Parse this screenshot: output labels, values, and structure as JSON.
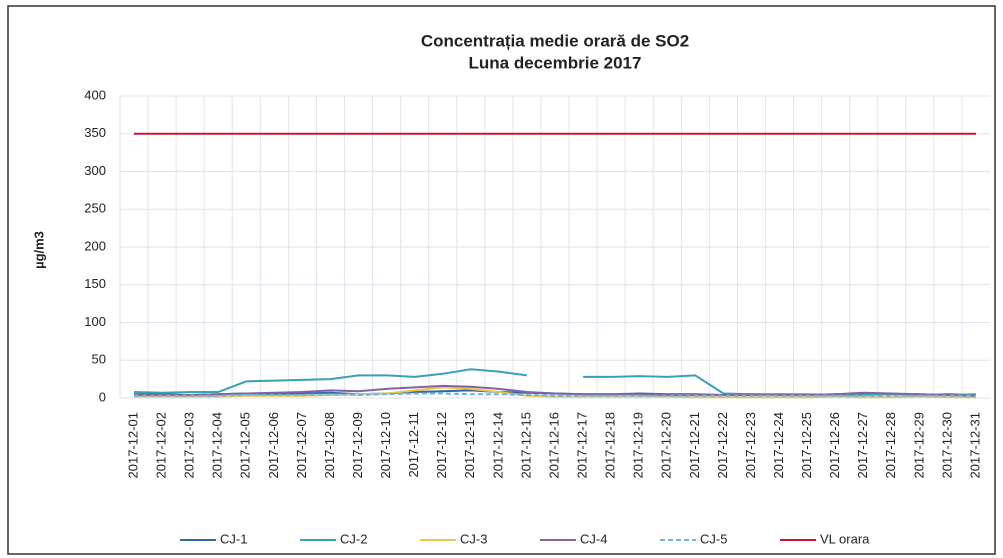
{
  "chart_data": {
    "type": "line",
    "title": "Concentrația medie orară de SO2",
    "subtitle": "Luna decembrie 2017",
    "y_label": "µg/m3",
    "categories": [
      "2017-12-01",
      "2017-12-02",
      "2017-12-03",
      "2017-12-04",
      "2017-12-05",
      "2017-12-06",
      "2017-12-07",
      "2017-12-08",
      "2017-12-09",
      "2017-12-10",
      "2017-12-11",
      "2017-12-12",
      "2017-12-13",
      "2017-12-14",
      "2017-12-15",
      "2017-12-16",
      "2017-12-17",
      "2017-12-18",
      "2017-12-19",
      "2017-12-20",
      "2017-12-21",
      "2017-12-22",
      "2017-12-23",
      "2017-12-24",
      "2017-12-25",
      "2017-12-26",
      "2017-12-27",
      "2017-12-28",
      "2017-12-29",
      "2017-12-30",
      "2017-12-31"
    ],
    "series": [
      {
        "name": "CJ-1",
        "color": "#2e6aa8",
        "values": [
          5,
          5,
          4,
          5,
          6,
          5,
          6,
          7,
          5,
          6,
          8,
          9,
          10,
          8,
          7,
          6,
          5,
          5,
          6,
          5,
          5,
          4,
          4,
          5,
          4,
          5,
          6,
          5,
          4,
          5,
          4
        ]
      },
      {
        "name": "CJ-2",
        "color": "#3aa0b8",
        "values": [
          8,
          7,
          8,
          8,
          22,
          23,
          24,
          25,
          30,
          30,
          28,
          32,
          38,
          35,
          30,
          null,
          28,
          28,
          29,
          28,
          30,
          6,
          5,
          5,
          5,
          4,
          4,
          5,
          5,
          4,
          5
        ]
      },
      {
        "name": "CJ-3",
        "color": "#f0c24a",
        "values": [
          2,
          2,
          2,
          2,
          3,
          3,
          3,
          4,
          5,
          6,
          10,
          14,
          12,
          8,
          3,
          2,
          2,
          2,
          2,
          2,
          1,
          1,
          1,
          1,
          1,
          2,
          1,
          1,
          2,
          1,
          1
        ]
      },
      {
        "name": "CJ-4",
        "color": "#8064a2",
        "values": [
          4,
          4,
          4,
          5,
          6,
          7,
          8,
          10,
          9,
          12,
          14,
          16,
          15,
          12,
          8,
          6,
          5,
          5,
          5,
          4,
          4,
          4,
          5,
          4,
          4,
          5,
          7,
          6,
          5,
          4,
          3
        ]
      },
      {
        "name": "CJ-5",
        "color": "#6fb3e0",
        "dashed": true,
        "values": [
          3,
          3,
          3,
          3,
          4,
          4,
          4,
          5,
          4,
          5,
          6,
          6,
          5,
          5,
          4,
          3,
          3,
          3,
          3,
          3,
          3,
          3,
          3,
          3,
          3,
          3,
          3,
          3,
          3,
          3,
          3
        ]
      },
      {
        "name": "VL orara",
        "color": "#c8143c",
        "values": [
          350,
          350,
          350,
          350,
          350,
          350,
          350,
          350,
          350,
          350,
          350,
          350,
          350,
          350,
          350,
          350,
          350,
          350,
          350,
          350,
          350,
          350,
          350,
          350,
          350,
          350,
          350,
          350,
          350,
          350,
          350
        ]
      }
    ],
    "ylim": [
      0,
      400
    ],
    "yticks": [
      0,
      50,
      100,
      150,
      200,
      250,
      300,
      350,
      400
    ],
    "grid": true,
    "legend": "bottom"
  }
}
